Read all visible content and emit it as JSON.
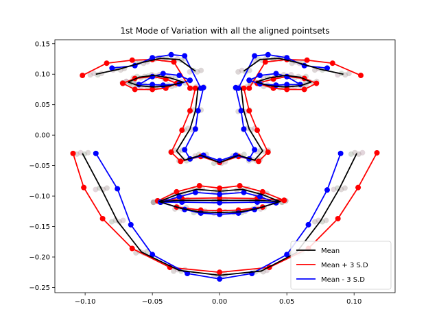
{
  "chart_data": {
    "type": "line",
    "title": "1st Mode of Variation with all the aligned pointsets",
    "xlabel": "",
    "ylabel": "",
    "xlim": [
      -0.1225,
      0.1305
    ],
    "ylim": [
      -0.2585,
      0.1565
    ],
    "xticks": [
      -0.1,
      -0.05,
      0.0,
      0.05,
      0.1
    ],
    "xtick_labels": [
      "−0.10",
      "−0.05",
      "0.00",
      "0.05",
      "0.10"
    ],
    "yticks": [
      0.15,
      0.1,
      0.05,
      0.0,
      -0.05,
      -0.1,
      -0.15,
      -0.2,
      -0.25
    ],
    "ytick_labels": [
      "0.15",
      "0.10",
      "0.05",
      "0.00",
      "−0.05",
      "−0.10",
      "−0.15",
      "−0.20",
      "−0.25"
    ],
    "grid": false,
    "legend_position": "lower-right",
    "series": [
      {
        "name": "Mean",
        "color": "#000000",
        "polylines": [
          [
            [
              -0.102,
              -0.03
            ],
            [
              -0.088,
              -0.088
            ],
            [
              -0.076,
              -0.141
            ],
            [
              -0.058,
              -0.192
            ],
            [
              -0.03,
              -0.222
            ],
            [
              0.0,
              -0.23
            ],
            [
              0.031,
              -0.223
            ],
            [
              0.057,
              -0.193
            ],
            [
              0.075,
              -0.141
            ],
            [
              0.089,
              -0.088
            ],
            [
              0.102,
              -0.03
            ]
          ],
          [
            [
              -0.092,
              0.1
            ],
            [
              -0.075,
              0.108
            ],
            [
              -0.058,
              0.119
            ],
            [
              -0.044,
              0.126
            ],
            [
              -0.03,
              0.124
            ],
            [
              -0.018,
              0.105
            ]
          ],
          [
            [
              0.018,
              0.105
            ],
            [
              0.03,
              0.124
            ],
            [
              0.044,
              0.126
            ],
            [
              0.058,
              0.119
            ],
            [
              0.075,
              0.108
            ],
            [
              0.092,
              0.1
            ]
          ],
          [
            [
              -0.068,
              0.087
            ],
            [
              -0.06,
              0.095
            ],
            [
              -0.049,
              0.098
            ],
            [
              -0.037,
              0.094
            ],
            [
              -0.027,
              0.087
            ],
            [
              -0.037,
              0.081
            ],
            [
              -0.049,
              0.079
            ],
            [
              -0.06,
              0.081
            ],
            [
              -0.068,
              0.087
            ]
          ],
          [
            [
              0.027,
              0.087
            ],
            [
              0.037,
              0.094
            ],
            [
              0.049,
              0.098
            ],
            [
              0.06,
              0.095
            ],
            [
              0.068,
              0.087
            ],
            [
              0.06,
              0.081
            ],
            [
              0.049,
              0.079
            ],
            [
              0.037,
              0.081
            ],
            [
              0.027,
              0.087
            ]
          ],
          [
            [
              -0.016,
              0.078
            ],
            [
              -0.018,
              0.04
            ],
            [
              -0.022,
              0.01
            ],
            [
              -0.032,
              -0.026
            ],
            [
              -0.026,
              -0.041
            ],
            [
              -0.014,
              -0.033
            ],
            [
              0.0,
              -0.045
            ],
            [
              0.014,
              -0.033
            ],
            [
              0.026,
              -0.041
            ],
            [
              0.032,
              -0.026
            ],
            [
              0.022,
              0.01
            ],
            [
              0.018,
              0.04
            ],
            [
              0.016,
              0.078
            ]
          ],
          [
            [
              -0.045,
              -0.109
            ],
            [
              -0.031,
              -0.097
            ],
            [
              -0.017,
              -0.089
            ],
            [
              0.0,
              -0.092
            ],
            [
              0.017,
              -0.089
            ],
            [
              0.031,
              -0.097
            ],
            [
              0.045,
              -0.109
            ],
            [
              0.029,
              -0.12
            ],
            [
              0.015,
              -0.126
            ],
            [
              0.0,
              -0.127
            ],
            [
              -0.015,
              -0.126
            ],
            [
              -0.029,
              -0.12
            ],
            [
              -0.045,
              -0.109
            ]
          ],
          [
            [
              -0.045,
              -0.109
            ],
            [
              -0.028,
              -0.107
            ],
            [
              0.0,
              -0.107
            ],
            [
              0.028,
              -0.107
            ],
            [
              0.045,
              -0.109
            ]
          ]
        ]
      },
      {
        "name": "Mean + 3 S.D",
        "color": "#ff0000",
        "polylines": [
          [
            [
              -0.109,
              -0.03
            ],
            [
              -0.101,
              -0.086
            ],
            [
              -0.087,
              -0.137
            ],
            [
              -0.065,
              -0.186
            ],
            [
              -0.037,
              -0.217
            ],
            [
              0.0,
              -0.225
            ],
            [
              0.037,
              -0.217
            ],
            [
              0.066,
              -0.186
            ],
            [
              0.088,
              -0.137
            ],
            [
              0.103,
              -0.086
            ],
            [
              0.117,
              -0.029
            ]
          ],
          [
            [
              -0.102,
              0.098
            ],
            [
              -0.084,
              0.118
            ],
            [
              -0.065,
              0.123
            ],
            [
              -0.05,
              0.124
            ],
            [
              -0.034,
              0.12
            ],
            [
              -0.022,
              0.077
            ]
          ],
          [
            [
              0.022,
              0.077
            ],
            [
              0.034,
              0.12
            ],
            [
              0.05,
              0.124
            ],
            [
              0.065,
              0.123
            ],
            [
              0.084,
              0.118
            ],
            [
              0.105,
              0.098
            ]
          ],
          [
            [
              -0.072,
              0.085
            ],
            [
              -0.063,
              0.093
            ],
            [
              -0.05,
              0.096
            ],
            [
              -0.04,
              0.092
            ],
            [
              -0.032,
              0.085
            ],
            [
              -0.04,
              0.077
            ],
            [
              -0.05,
              0.075
            ],
            [
              -0.063,
              0.075
            ],
            [
              -0.072,
              0.085
            ]
          ],
          [
            [
              0.028,
              0.085
            ],
            [
              0.04,
              0.092
            ],
            [
              0.05,
              0.096
            ],
            [
              0.063,
              0.093
            ],
            [
              0.072,
              0.085
            ],
            [
              0.063,
              0.075
            ],
            [
              0.05,
              0.075
            ],
            [
              0.04,
              0.077
            ],
            [
              0.028,
              0.085
            ]
          ],
          [
            [
              -0.018,
              0.077
            ],
            [
              -0.022,
              0.04
            ],
            [
              -0.028,
              0.008
            ],
            [
              -0.036,
              -0.028
            ],
            [
              -0.029,
              -0.043
            ],
            [
              -0.014,
              -0.035
            ],
            [
              0.0,
              -0.045
            ],
            [
              0.014,
              -0.035
            ],
            [
              0.029,
              -0.043
            ],
            [
              0.036,
              -0.028
            ],
            [
              0.028,
              0.008
            ],
            [
              0.022,
              0.04
            ],
            [
              0.018,
              0.077
            ]
          ],
          [
            [
              -0.046,
              -0.108
            ],
            [
              -0.032,
              -0.093
            ],
            [
              -0.015,
              -0.083
            ],
            [
              0.0,
              -0.087
            ],
            [
              0.015,
              -0.083
            ],
            [
              0.032,
              -0.093
            ],
            [
              0.048,
              -0.107
            ],
            [
              0.032,
              -0.118
            ],
            [
              0.014,
              -0.123
            ],
            [
              0.0,
              -0.124
            ],
            [
              -0.014,
              -0.123
            ],
            [
              -0.032,
              -0.118
            ],
            [
              -0.046,
              -0.108
            ]
          ],
          [
            [
              -0.046,
              -0.108
            ],
            [
              -0.028,
              -0.104
            ],
            [
              0.0,
              -0.103
            ],
            [
              0.028,
              -0.104
            ],
            [
              0.048,
              -0.107
            ]
          ]
        ]
      },
      {
        "name": "Mean - 3 S.D",
        "color": "#0000ff",
        "polylines": [
          [
            [
              -0.092,
              -0.03
            ],
            [
              -0.076,
              -0.088
            ],
            [
              -0.066,
              -0.147
            ],
            [
              -0.05,
              -0.196
            ],
            [
              -0.024,
              -0.227
            ],
            [
              0.0,
              -0.236
            ],
            [
              0.024,
              -0.227
            ],
            [
              0.05,
              -0.196
            ],
            [
              0.066,
              -0.147
            ],
            [
              0.08,
              -0.09
            ],
            [
              0.09,
              -0.03
            ]
          ],
          [
            [
              -0.08,
              0.11
            ],
            [
              -0.063,
              0.114
            ],
            [
              -0.05,
              0.127
            ],
            [
              -0.036,
              0.132
            ],
            [
              -0.026,
              0.13
            ],
            [
              -0.014,
              0.077
            ]
          ],
          [
            [
              0.014,
              0.077
            ],
            [
              0.026,
              0.13
            ],
            [
              0.036,
              0.132
            ],
            [
              0.05,
              0.127
            ],
            [
              0.063,
              0.114
            ],
            [
              0.08,
              0.11
            ]
          ],
          [
            [
              -0.06,
              0.083
            ],
            [
              -0.05,
              0.096
            ],
            [
              -0.042,
              0.101
            ],
            [
              -0.03,
              0.098
            ],
            [
              -0.022,
              0.09
            ],
            [
              -0.03,
              0.084
            ],
            [
              -0.042,
              0.082
            ],
            [
              -0.05,
              0.083
            ],
            [
              -0.06,
              0.083
            ]
          ],
          [
            [
              0.022,
              0.09
            ],
            [
              0.03,
              0.098
            ],
            [
              0.042,
              0.101
            ],
            [
              0.05,
              0.096
            ],
            [
              0.06,
              0.083
            ],
            [
              0.05,
              0.083
            ],
            [
              0.042,
              0.082
            ],
            [
              0.03,
              0.084
            ],
            [
              0.022,
              0.09
            ]
          ],
          [
            [
              -0.012,
              0.078
            ],
            [
              -0.016,
              0.04
            ],
            [
              -0.018,
              0.01
            ],
            [
              -0.026,
              -0.024
            ],
            [
              -0.022,
              -0.039
            ],
            [
              -0.012,
              -0.033
            ],
            [
              0.0,
              -0.042
            ],
            [
              0.012,
              -0.033
            ],
            [
              0.022,
              -0.039
            ],
            [
              0.026,
              -0.024
            ],
            [
              0.018,
              0.01
            ],
            [
              0.016,
              0.04
            ],
            [
              0.012,
              0.078
            ]
          ],
          [
            [
              -0.044,
              -0.11
            ],
            [
              -0.03,
              -0.101
            ],
            [
              -0.018,
              -0.094
            ],
            [
              0.0,
              -0.097
            ],
            [
              0.018,
              -0.094
            ],
            [
              0.03,
              -0.101
            ],
            [
              0.042,
              -0.111
            ],
            [
              0.026,
              -0.122
            ],
            [
              0.014,
              -0.128
            ],
            [
              0.0,
              -0.13
            ],
            [
              -0.014,
              -0.128
            ],
            [
              -0.026,
              -0.122
            ],
            [
              -0.044,
              -0.11
            ]
          ],
          [
            [
              -0.044,
              -0.11
            ],
            [
              -0.028,
              -0.11
            ],
            [
              0.0,
              -0.111
            ],
            [
              0.028,
              -0.11
            ],
            [
              0.042,
              -0.111
            ]
          ]
        ]
      }
    ]
  }
}
